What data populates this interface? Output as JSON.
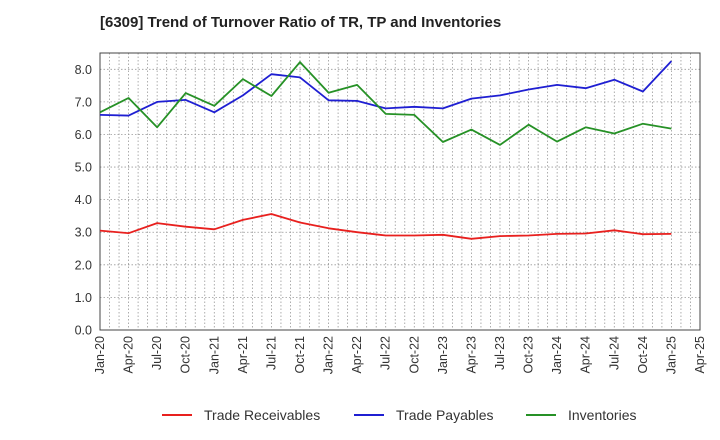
{
  "title": "[6309]  Trend of Turnover Ratio of TR, TP and Inventories",
  "chart_data": {
    "type": "line",
    "title": "[6309]  Trend of Turnover Ratio of TR, TP and Inventories",
    "xlabel": "",
    "ylabel": "",
    "ylim": [
      0,
      8.5
    ],
    "y_ticks": [
      "0.0",
      "1.0",
      "2.0",
      "3.0",
      "4.0",
      "5.0",
      "6.0",
      "7.0",
      "8.0"
    ],
    "x_ticks": [
      "Jan-20",
      "Apr-20",
      "Jul-20",
      "Oct-20",
      "Jan-21",
      "Apr-21",
      "Jul-21",
      "Oct-21",
      "Jan-22",
      "Apr-22",
      "Jul-22",
      "Oct-22",
      "Jan-23",
      "Apr-23",
      "Jul-23",
      "Oct-23",
      "Jan-24",
      "Apr-24",
      "Jul-24",
      "Oct-24",
      "Jan-25",
      "Apr-25"
    ],
    "x": [
      "Jan-20",
      "Apr-20",
      "Jul-20",
      "Oct-20",
      "Jan-21",
      "Apr-21",
      "Jul-21",
      "Oct-21",
      "Jan-22",
      "Apr-22",
      "Jul-22",
      "Oct-22",
      "Jan-23",
      "Apr-23",
      "Jul-23",
      "Oct-23",
      "Jan-24",
      "Apr-24",
      "Jul-24",
      "Oct-24",
      "Jan-25"
    ],
    "grid": true,
    "legend_position": "bottom",
    "series": [
      {
        "name": "Trade Receivables",
        "color": "#e8201e",
        "values": [
          3.05,
          2.97,
          3.28,
          3.17,
          3.09,
          3.38,
          3.56,
          3.3,
          3.12,
          3.0,
          2.9,
          2.9,
          2.92,
          2.8,
          2.88,
          2.9,
          2.95,
          2.96,
          3.06,
          2.94,
          2.95
        ]
      },
      {
        "name": "Trade Payables",
        "color": "#1f1fd2",
        "values": [
          6.6,
          6.58,
          7.0,
          7.06,
          6.68,
          7.2,
          7.85,
          7.75,
          7.05,
          7.03,
          6.8,
          6.85,
          6.8,
          7.1,
          7.2,
          7.38,
          7.52,
          7.42,
          7.68,
          7.32,
          8.25
        ]
      },
      {
        "name": "Inventories",
        "color": "#269126",
        "values": [
          6.68,
          7.12,
          6.22,
          7.27,
          6.88,
          7.7,
          7.18,
          8.22,
          7.28,
          7.52,
          6.63,
          6.6,
          5.77,
          6.15,
          5.68,
          6.3,
          5.78,
          6.22,
          6.03,
          6.33,
          6.18
        ]
      }
    ]
  }
}
